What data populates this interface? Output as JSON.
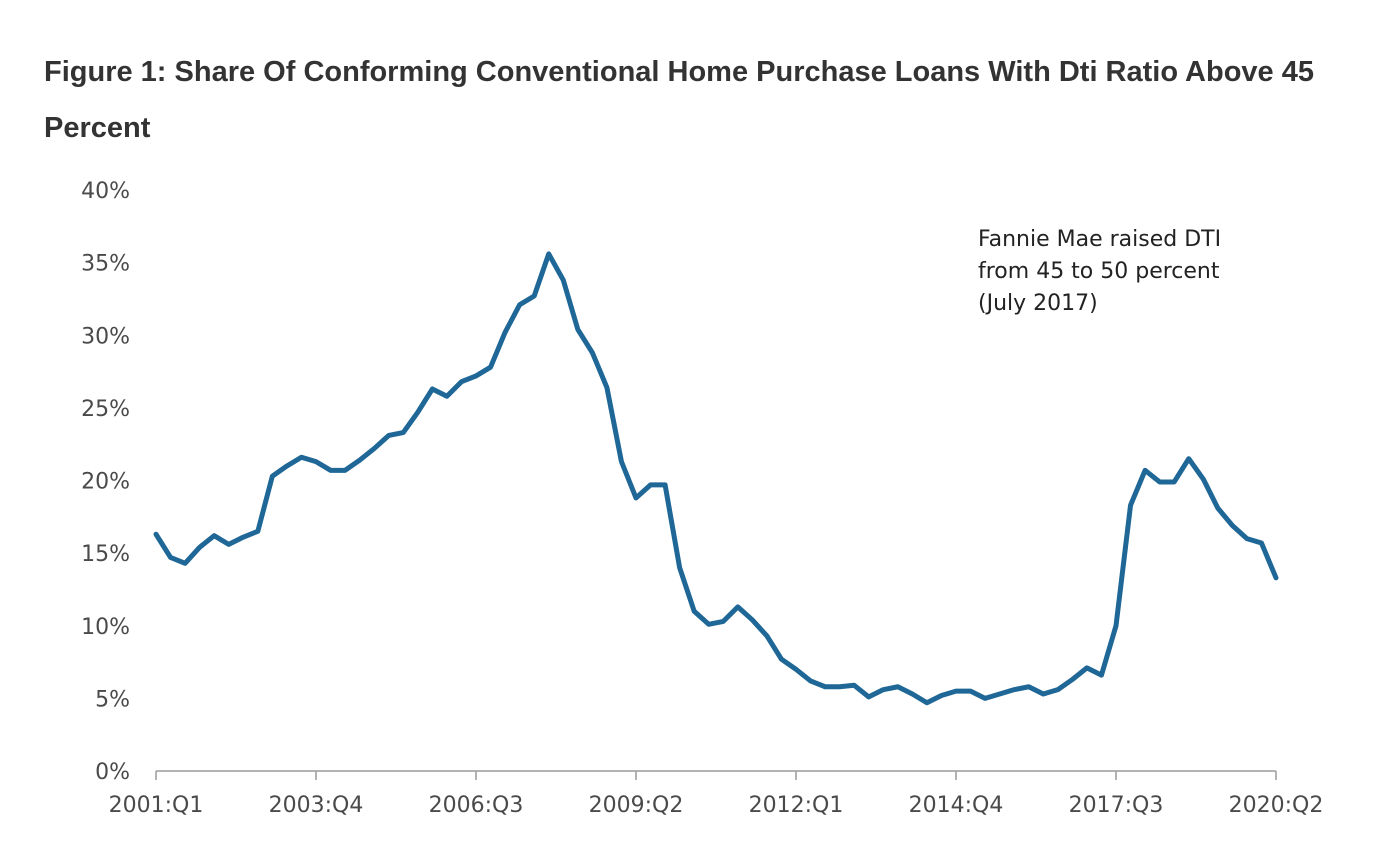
{
  "chart_data": {
    "type": "line",
    "title": "Figure 1: Share Of Conforming Conventional Home Purchase Loans With Dti Ratio Above 45 Percent",
    "xlabel": "",
    "ylabel": "",
    "ylim": [
      0,
      40
    ],
    "y_ticks": [
      "0%",
      "5%",
      "10%",
      "15%",
      "20%",
      "25%",
      "30%",
      "35%",
      "40%"
    ],
    "y_tick_values": [
      0,
      5,
      10,
      15,
      20,
      25,
      30,
      35,
      40
    ],
    "x_tick_labels": [
      "2001:Q1",
      "2003:Q4",
      "2006:Q3",
      "2009:Q2",
      "2012:Q1",
      "2014:Q4",
      "2017:Q3",
      "2020:Q2"
    ],
    "x_tick_index": [
      0,
      11,
      22,
      33,
      44,
      55,
      66,
      77
    ],
    "grid": false,
    "line_color": "#1f6796",
    "annotation": {
      "lines": [
        "Fannie Mae raised DTI",
        "from 45 to 50 percent",
        "(July 2017)"
      ]
    },
    "series": [
      {
        "values": [
          16.3,
          14.7,
          14.3,
          15.4,
          16.2,
          15.6,
          16.1,
          16.5,
          20.3,
          21.0,
          21.6,
          21.3,
          20.7,
          20.7,
          21.4,
          22.2,
          23.1,
          23.3,
          24.7,
          26.3,
          25.8,
          26.8,
          27.2,
          27.8,
          30.2,
          32.1,
          32.7,
          35.6,
          33.8,
          30.4,
          28.8,
          26.4,
          21.3,
          18.8,
          19.7,
          19.7,
          14.0,
          11.0,
          10.1,
          10.3,
          11.3,
          10.4,
          9.3,
          7.7,
          7.0,
          6.2,
          5.8,
          5.8,
          5.9,
          5.1,
          5.6,
          5.8,
          5.3,
          4.7,
          5.2,
          5.5,
          5.5,
          5.0,
          5.3,
          5.6,
          5.8,
          5.3,
          5.6,
          6.3,
          7.1,
          6.6,
          10.0,
          18.3,
          20.7,
          19.9,
          19.9,
          21.5,
          20.1,
          18.1,
          16.9,
          16.0,
          15.7,
          13.3
        ]
      }
    ]
  }
}
